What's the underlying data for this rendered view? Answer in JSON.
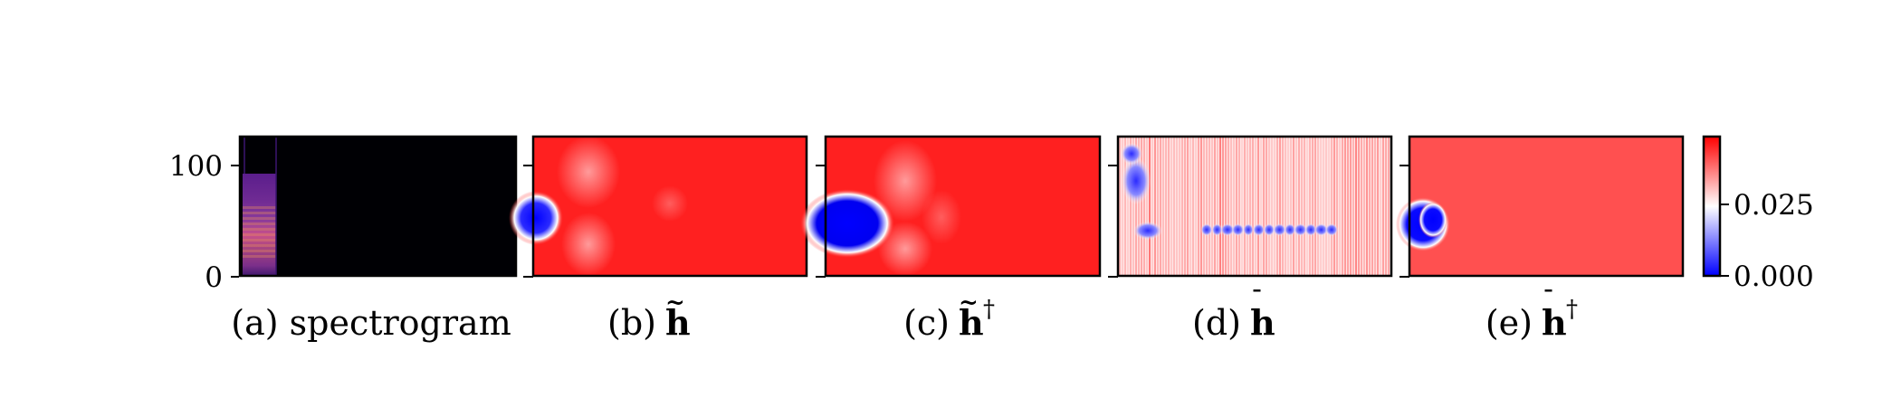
{
  "chart_data": {
    "type": "heatmap",
    "yaxis": {
      "ylim": [
        0,
        128
      ],
      "ticks": [
        0,
        100
      ]
    },
    "colorbar": {
      "colormap": "bwr",
      "range": [
        0.0,
        0.045
      ],
      "ticks": [
        0.0,
        0.025
      ],
      "tick_labels": [
        "0.000",
        "0.025"
      ],
      "colors": {
        "low": "#0000ff",
        "mid": "#ffffff",
        "high": "#ff0000"
      }
    },
    "panels": [
      {
        "id": "a",
        "caption_prefix": "(a)",
        "caption_text": "spectrogram",
        "symbol": "",
        "colormap": "magma",
        "content": "spectrogram of short audio clip, padded with zeros"
      },
      {
        "id": "b",
        "caption_prefix": "(b)",
        "caption_text": "",
        "symbol": "h",
        "accent": "~",
        "superscript": "",
        "colormap": "bwr",
        "content": "mostly high values, low-value blob at left edge near y≈40"
      },
      {
        "id": "c",
        "caption_prefix": "(c)",
        "caption_text": "",
        "symbol": "h",
        "accent": "~",
        "superscript": "†",
        "colormap": "bwr",
        "content": "mostly high values, larger low-value blob at left edge near y≈40"
      },
      {
        "id": "d",
        "caption_prefix": "(d)",
        "caption_text": "",
        "symbol": "h",
        "accent": "¯",
        "superscript": "",
        "colormap": "bwr",
        "content": "noisy vertical stripes, blue band near y≈40 and blobs near left"
      },
      {
        "id": "e",
        "caption_prefix": "(e)",
        "caption_text": "",
        "symbol": "h",
        "accent": "¯",
        "superscript": "†",
        "colormap": "bwr",
        "content": "uniform high values, small low-value blob at left edge near y≈40"
      }
    ]
  }
}
